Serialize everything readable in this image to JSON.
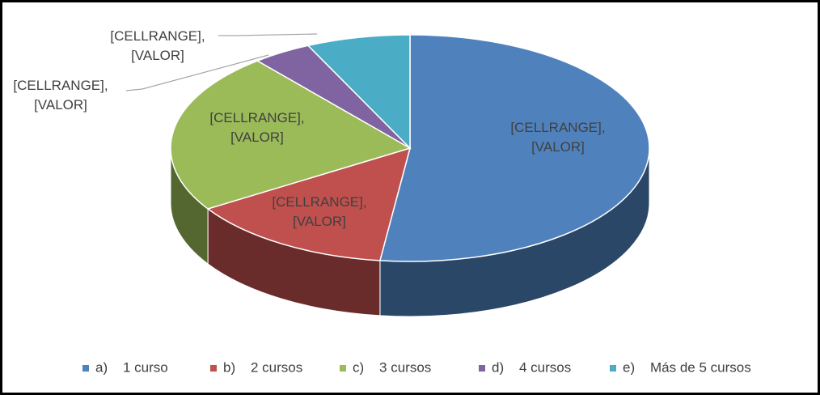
{
  "chart_data": {
    "type": "pie3d",
    "categories": [
      "a)    1 curso",
      "b)    2 cursos",
      "c)    3 cursos",
      "d)    4 cursos",
      "e)    Más de 5 cursos"
    ],
    "values": [
      52,
      14,
      23,
      4,
      7
    ],
    "colors": [
      "#4f81bd",
      "#c0504d",
      "#9bbb59",
      "#8064a2",
      "#4bacc6"
    ],
    "value_labels": [
      [
        "[CELLRANGE],",
        "[VALOR]"
      ],
      [
        "[CELLRANGE],",
        "[VALOR]"
      ],
      [
        "[CELLRANGE],",
        "[VALOR]"
      ],
      [
        "[CELLRANGE],",
        "[VALOR]"
      ],
      [
        "[CELLRANGE],",
        "[VALOR]"
      ]
    ],
    "legend": "bottom"
  }
}
